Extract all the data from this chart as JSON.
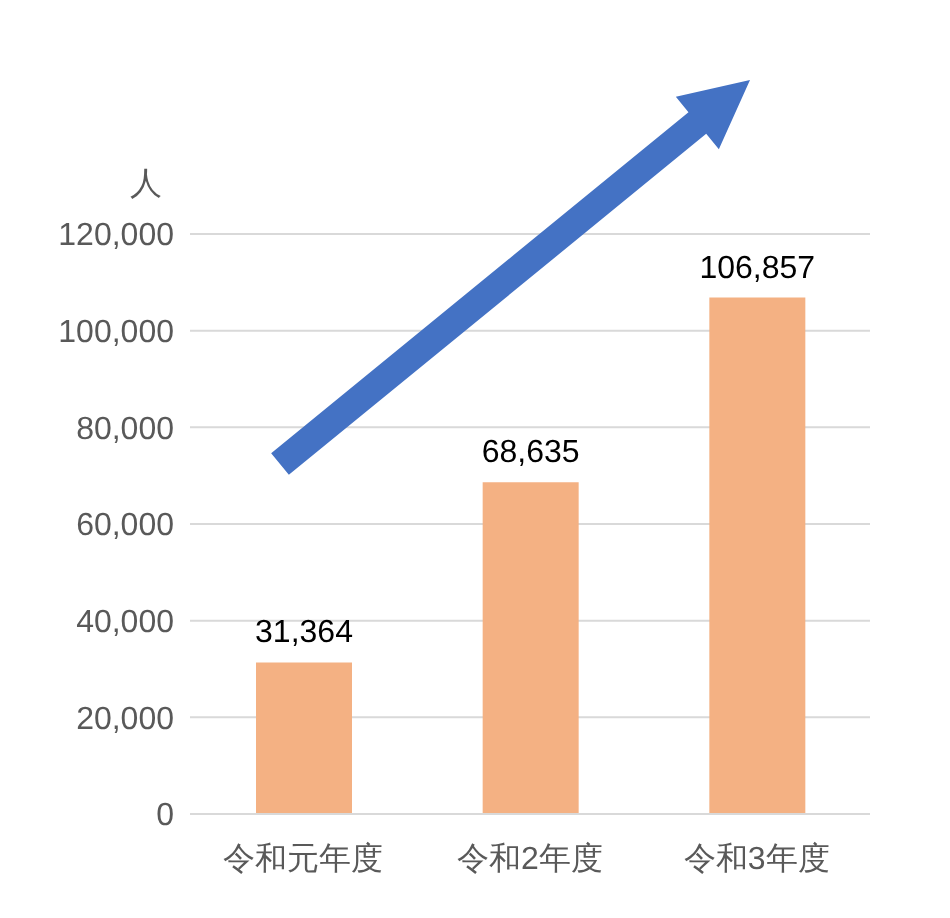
{
  "chart_data": {
    "type": "bar",
    "ylabel": "人",
    "categories": [
      "令和元年度",
      "令和2年度",
      "令和3年度"
    ],
    "values": [
      31364,
      68635,
      106857
    ],
    "value_labels": [
      "31,364",
      "68,635",
      "106,857"
    ],
    "color": "#f4b183",
    "ylim": [
      0,
      120000
    ],
    "yticks": [
      0,
      {
        "value": 20000,
        "label": "20,000"
      },
      {
        "value": 40000,
        "label": "40,000"
      },
      {
        "value": 60000,
        "label": "60,000"
      },
      {
        "value": 80000,
        "label": "80,000"
      },
      {
        "value": 100000,
        "label": "100,000"
      },
      {
        "value": 120000,
        "label": "120,000"
      }
    ],
    "grid": "y"
  }
}
